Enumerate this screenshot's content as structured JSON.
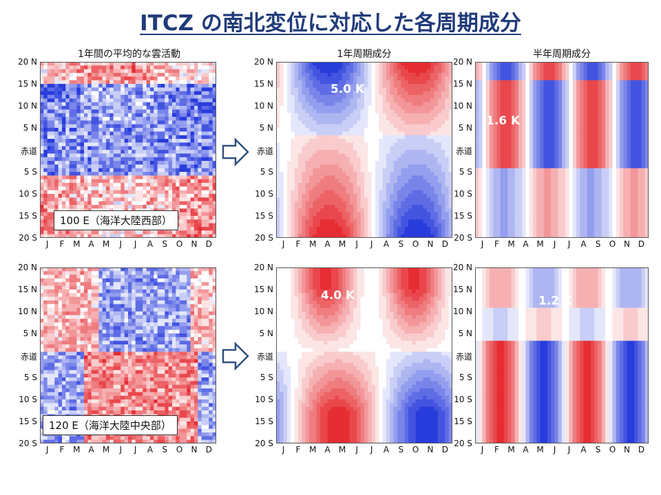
{
  "slide_title": "ITCZ の南北変位に対応した各周期成分",
  "column_titles": {
    "mean": "1年間の平均的な雲活動",
    "annual": "1年周期成分",
    "semiannual": "半年周期成分"
  },
  "y_axis_labels": [
    "20 N",
    "15 N",
    "10 N",
    "5 N",
    "赤道",
    "5 S",
    "10 S",
    "15 S",
    "20 S"
  ],
  "month_labels": [
    "J",
    "F",
    "M",
    "A",
    "M",
    "J",
    "J",
    "A",
    "S",
    "O",
    "N",
    "D"
  ],
  "rows": [
    {
      "longitude_label": "100 E（海洋大陸西部）",
      "annual_amplitude": "5.0 K",
      "semiannual_amplitude": "1.6 K"
    },
    {
      "longitude_label": "120 E（海洋大陸中央部）",
      "annual_amplitude": "4.0 K",
      "semiannual_amplitude": "1.2 K"
    }
  ],
  "colors": {
    "title": "#1f3b7a",
    "warm": "#e8343a",
    "cool": "#2b3fd6",
    "arrow": "#2f4f7f"
  }
}
